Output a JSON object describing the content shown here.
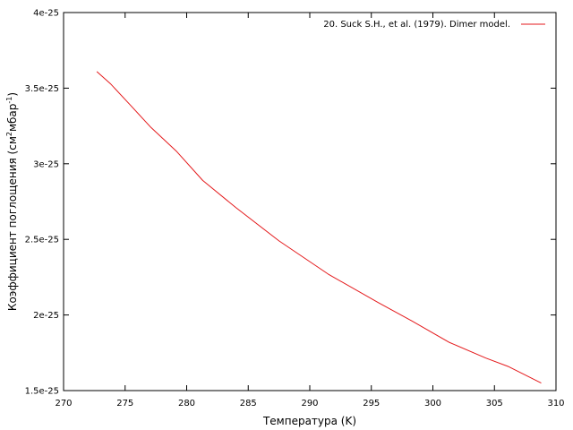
{
  "chart_data": {
    "type": "line",
    "xlabel": "Температура (K)",
    "ylabel": {
      "prefix": "Коэффициент поглощения (см",
      "sup1": "2",
      "mid": "мбар",
      "sup2": "-1",
      "suffix": ")"
    },
    "xlim": [
      270,
      310
    ],
    "ylim": [
      1.5e-25,
      4e-25
    ],
    "x_ticks": [
      270,
      275,
      280,
      285,
      290,
      295,
      300,
      305,
      310
    ],
    "y_ticks": [
      1.5e-25,
      2e-25,
      2.5e-25,
      3e-25,
      3.5e-25,
      4e-25
    ],
    "x_tick_labels": [
      "270",
      "275",
      "280",
      "285",
      "290",
      "295",
      "300",
      "305",
      "310"
    ],
    "y_tick_labels": [
      "1.5e-25",
      "2e-25",
      "2.5e-25",
      "3e-25",
      "3.5e-25",
      "4e-25"
    ],
    "grid": false,
    "legend_position": "top-right",
    "series": [
      {
        "name": "20. Suck S.H., et al. (1979). Dimer model.",
        "color": "#e41a1c",
        "x": [
          272.7,
          273.8,
          275.4,
          277.1,
          279.2,
          281.3,
          284.0,
          287.5,
          291.5,
          295.6,
          298.3,
          301.3,
          304.3,
          306.1,
          308.8
        ],
        "y": [
          3.61e-25,
          3.53e-25,
          3.39e-25,
          3.24e-25,
          3.08e-25,
          2.89e-25,
          2.71e-25,
          2.49e-25,
          2.27e-25,
          2.08e-25,
          1.96e-25,
          1.82e-25,
          1.715e-25,
          1.66e-25,
          1.55e-25
        ]
      }
    ]
  }
}
